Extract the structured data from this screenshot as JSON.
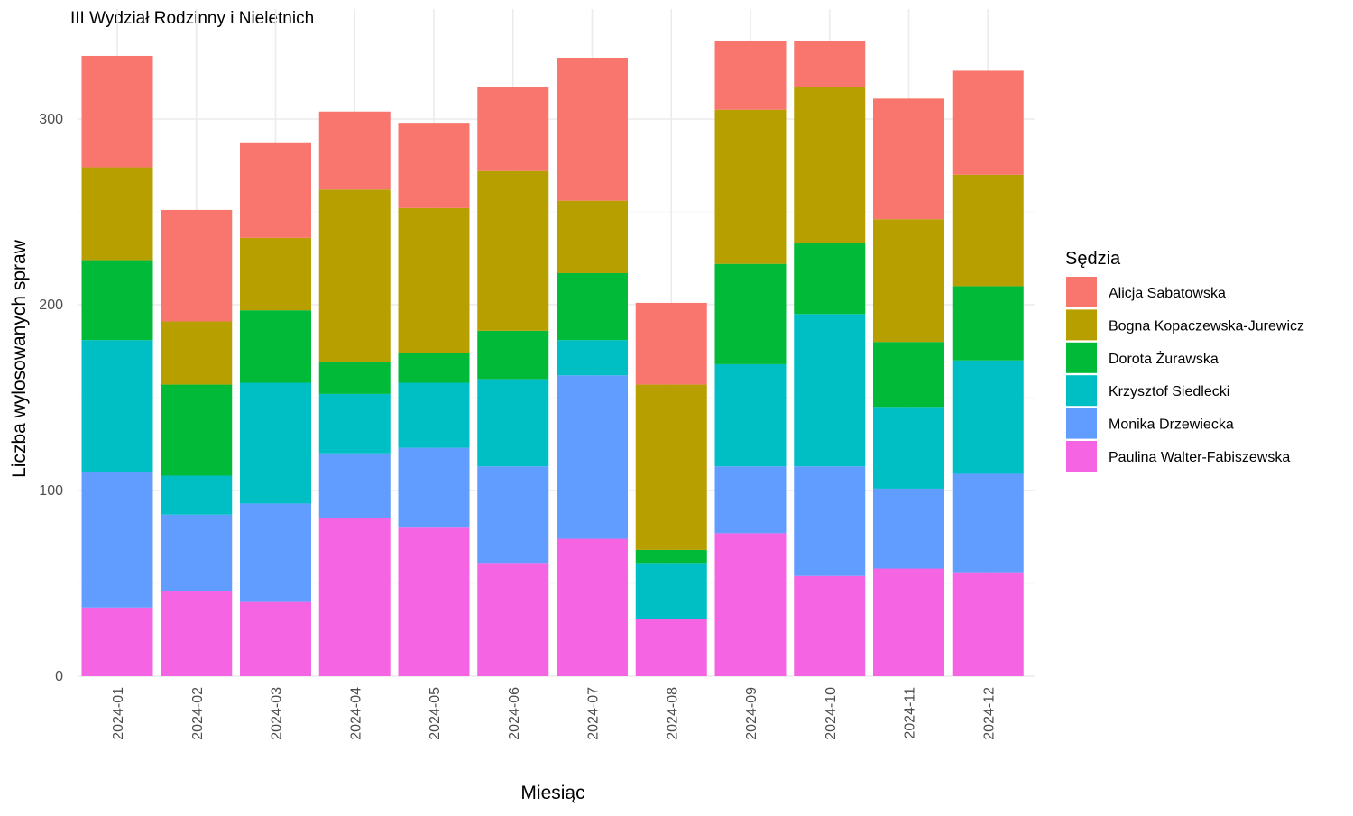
{
  "chart_data": {
    "type": "bar",
    "stacked": true,
    "title": "III Wydział Rodzinny i Nieletnich",
    "xlabel": "Miesiąc",
    "ylabel": "Liczba wylosowanych spraw",
    "ylim": [
      0,
      345
    ],
    "yticks": [
      0,
      100,
      200,
      300
    ],
    "grid": true,
    "legend": {
      "title": "Sędzia",
      "position": "right"
    },
    "categories": [
      "2024-01",
      "2024-02",
      "2024-03",
      "2024-04",
      "2024-05",
      "2024-06",
      "2024-07",
      "2024-08",
      "2024-09",
      "2024-10",
      "2024-11",
      "2024-12"
    ],
    "series": [
      {
        "name": "Paulina Walter-Fabiszewska",
        "color": "#F564E3",
        "values": [
          37,
          46,
          40,
          85,
          80,
          61,
          74,
          31,
          77,
          54,
          58,
          56
        ]
      },
      {
        "name": "Monika Drzewiecka",
        "color": "#619CFF",
        "values": [
          73,
          41,
          53,
          35,
          43,
          52,
          88,
          0,
          36,
          59,
          43,
          53
        ]
      },
      {
        "name": "Krzysztof Siedlecki",
        "color": "#00BFC4",
        "values": [
          71,
          21,
          65,
          32,
          35,
          47,
          19,
          30,
          55,
          82,
          44,
          61
        ]
      },
      {
        "name": "Dorota Żurawska",
        "color": "#00BA38",
        "values": [
          43,
          49,
          39,
          17,
          16,
          26,
          36,
          7,
          54,
          38,
          35,
          40
        ]
      },
      {
        "name": "Bogna Kopaczewska-Jurewicz",
        "color": "#B79F00",
        "values": [
          50,
          34,
          39,
          93,
          78,
          86,
          39,
          89,
          83,
          84,
          66,
          60
        ]
      },
      {
        "name": "Alicja Sabatowska",
        "color": "#F8766D",
        "values": [
          60,
          60,
          51,
          42,
          46,
          45,
          77,
          44,
          37,
          25,
          65,
          56
        ]
      }
    ],
    "legend_order": [
      "Alicja Sabatowska",
      "Bogna Kopaczewska-Jurewicz",
      "Dorota Żurawska",
      "Krzysztof Siedlecki",
      "Monika Drzewiecka",
      "Paulina Walter-Fabiszewska"
    ]
  }
}
